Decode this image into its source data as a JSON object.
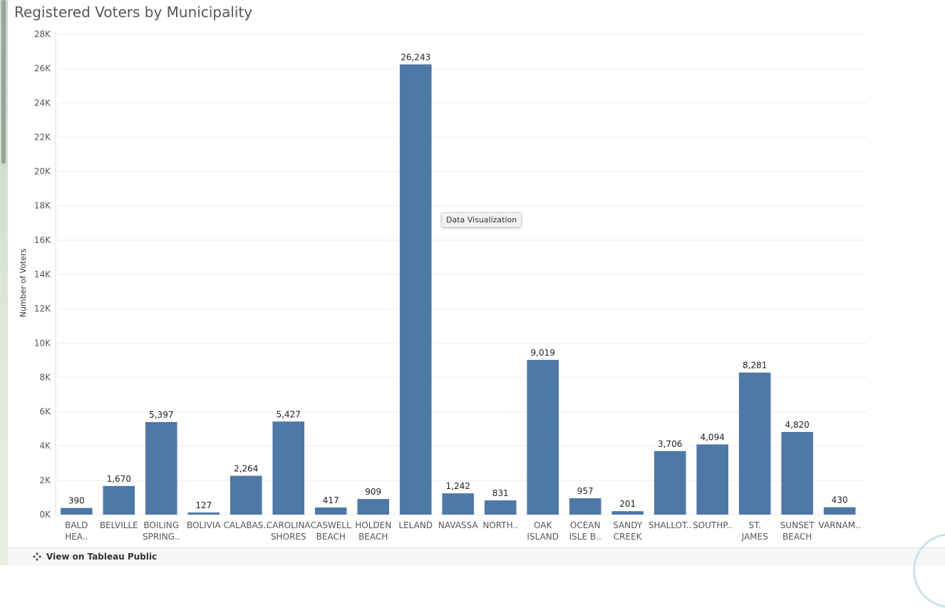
{
  "page": {
    "title": "Registered Voters by Municipality"
  },
  "tooltip": {
    "label": "Data Visualization"
  },
  "footer": {
    "link_label": "View on Tableau Public"
  },
  "colors": {
    "bar": "#4e79a7",
    "grid": "#ececec",
    "text": "#333333"
  },
  "chart_data": {
    "type": "bar",
    "title": "Registered Voters by Municipality",
    "xlabel": "",
    "ylabel": "Number of Voters",
    "ylim": [
      0,
      28000
    ],
    "yticks": [
      0,
      2000,
      4000,
      6000,
      8000,
      10000,
      12000,
      14000,
      16000,
      18000,
      20000,
      22000,
      24000,
      26000,
      28000
    ],
    "ytick_labels": [
      "0K",
      "2K",
      "4K",
      "6K",
      "8K",
      "10K",
      "12K",
      "14K",
      "16K",
      "18K",
      "20K",
      "22K",
      "24K",
      "26K",
      "28K"
    ],
    "grid": true,
    "categories": [
      [
        "BALD",
        "HEA.."
      ],
      [
        "BELVILLE"
      ],
      [
        "BOILING",
        "SPRING.."
      ],
      [
        "BOLIVIA"
      ],
      [
        "CALABAS.."
      ],
      [
        "CAROLINA",
        "SHORES"
      ],
      [
        "CASWELL",
        "BEACH"
      ],
      [
        "HOLDEN",
        "BEACH"
      ],
      [
        "LELAND"
      ],
      [
        "NAVASSA"
      ],
      [
        "NORTH.."
      ],
      [
        "OAK",
        "ISLAND"
      ],
      [
        "OCEAN",
        "ISLE B.."
      ],
      [
        "SANDY",
        "CREEK"
      ],
      [
        "SHALLOT.."
      ],
      [
        "SOUTHP.."
      ],
      [
        "ST.",
        "JAMES"
      ],
      [
        "SUNSET",
        "BEACH"
      ],
      [
        "VARNAM.."
      ]
    ],
    "values": [
      390,
      1670,
      5397,
      127,
      2264,
      5427,
      417,
      909,
      26243,
      1242,
      831,
      9019,
      957,
      201,
      3706,
      4094,
      8281,
      4820,
      430
    ],
    "value_labels": [
      "390",
      "1,670",
      "5,397",
      "127",
      "2,264",
      "5,427",
      "417",
      "909",
      "26,243",
      "1,242",
      "831",
      "9,019",
      "957",
      "201",
      "3,706",
      "4,094",
      "8,281",
      "4,820",
      "430"
    ]
  }
}
